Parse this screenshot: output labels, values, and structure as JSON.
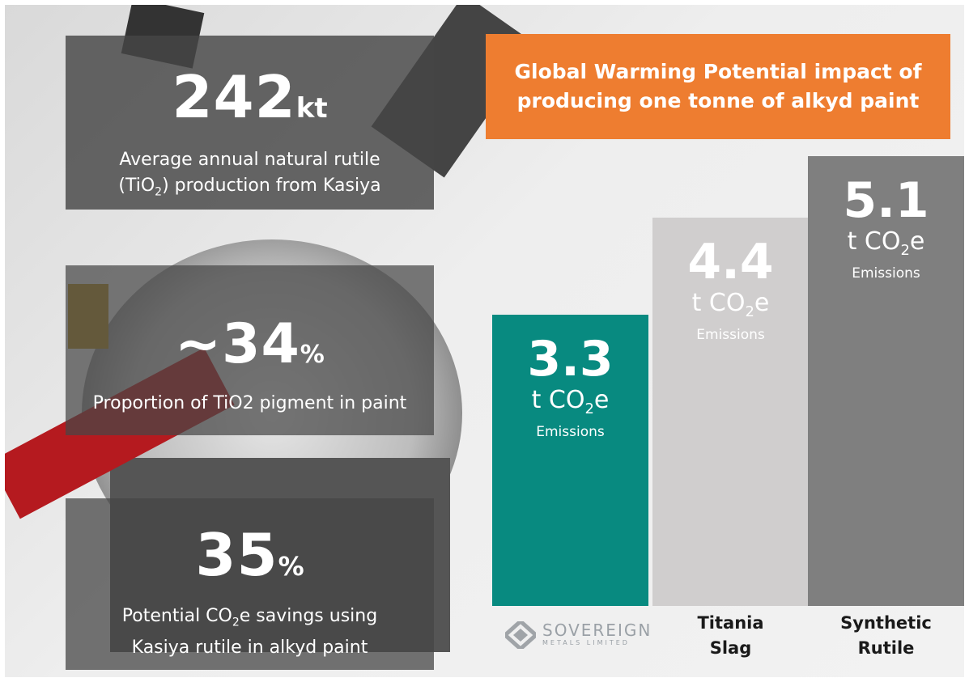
{
  "title": "Global Warming Potential impact of producing one tonne of alkyd paint",
  "stats": [
    {
      "value": "242",
      "unit": "kt",
      "description_line1": "Average annual natural rutile",
      "description_line2": "(TiO",
      "description_line2_sub": "2",
      "description_line2_end": ") production from Kasiya"
    },
    {
      "value": "~34",
      "unit": "%",
      "description": "Proportion of TiO2 pigment in paint"
    },
    {
      "value": "35",
      "unit": "%",
      "description_line1_start": "Potential CO",
      "description_line1_sub": "2",
      "description_line1_end": "e savings using",
      "description_line2": "Kasiya rutile in alkyd paint"
    }
  ],
  "chart_data": {
    "type": "bar",
    "categories": [
      "",
      "Titania Slag",
      "Synthetic Rutile"
    ],
    "category_label_lines": [
      [
        "",
        ""
      ],
      [
        "Titania",
        "Slag"
      ],
      [
        "Synthetic",
        "Rutile"
      ]
    ],
    "values": [
      3.3,
      4.4,
      5.1
    ],
    "value_labels": [
      "3.3",
      "4.4",
      "5.1"
    ],
    "unit_prefix": "t CO",
    "unit_sub": "2",
    "unit_suffix": "e",
    "emissions_label": "Emissions",
    "colors": [
      "#088a80",
      "#d0cece",
      "#7f7f7f"
    ],
    "ylim": [
      0,
      5.1
    ]
  },
  "logo": {
    "name": "SOVEREIGN",
    "sub": "METALS LIMITED"
  },
  "colors": {
    "title_bg": "#ee7d30",
    "stat_box": "#595959"
  }
}
